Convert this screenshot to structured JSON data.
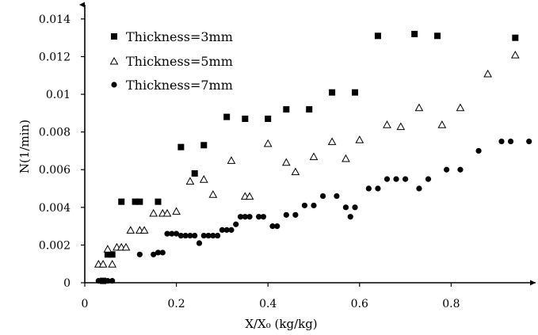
{
  "chart_data": {
    "type": "scatter",
    "title": "",
    "xlabel": "X/X₀ (kg/kg)",
    "ylabel": "N(1/min)",
    "xlim": [
      0,
      1.0
    ],
    "ylim": [
      0,
      0.0145
    ],
    "x_ticks": [
      {
        "value": 0,
        "label": "0"
      },
      {
        "value": 0.2,
        "label": "0.2"
      },
      {
        "value": 0.4,
        "label": "0.4"
      },
      {
        "value": 0.6,
        "label": "0.6"
      },
      {
        "value": 0.8,
        "label": "0.8"
      }
    ],
    "y_ticks": [
      {
        "value": 0,
        "label": "0"
      },
      {
        "value": 0.002,
        "label": "0.002"
      },
      {
        "value": 0.004,
        "label": "0.004"
      },
      {
        "value": 0.006,
        "label": "0.006"
      },
      {
        "value": 0.008,
        "label": "0.008"
      },
      {
        "value": 0.01,
        "label": "0.01"
      },
      {
        "value": 0.012,
        "label": "0.012"
      },
      {
        "value": 0.014,
        "label": "0.014"
      }
    ],
    "grid": false,
    "legend_position": "top-left",
    "series": [
      {
        "name": "Thickness=3mm",
        "marker": "square",
        "color": "#000000",
        "points": [
          [
            0.04,
            0.0001
          ],
          [
            0.05,
            0.0015
          ],
          [
            0.06,
            0.0015
          ],
          [
            0.08,
            0.0043
          ],
          [
            0.11,
            0.0043
          ],
          [
            0.12,
            0.0043
          ],
          [
            0.16,
            0.0043
          ],
          [
            0.21,
            0.0072
          ],
          [
            0.24,
            0.0058
          ],
          [
            0.26,
            0.0073
          ],
          [
            0.31,
            0.0088
          ],
          [
            0.35,
            0.0087
          ],
          [
            0.4,
            0.0087
          ],
          [
            0.44,
            0.0092
          ],
          [
            0.49,
            0.0092
          ],
          [
            0.54,
            0.0101
          ],
          [
            0.59,
            0.0101
          ],
          [
            0.64,
            0.0131
          ],
          [
            0.72,
            0.0132
          ],
          [
            0.77,
            0.0131
          ],
          [
            0.94,
            0.013
          ]
        ]
      },
      {
        "name": "Thickness=5mm",
        "marker": "triangle",
        "color": "#000000",
        "points": [
          [
            0.03,
            0.001
          ],
          [
            0.04,
            0.001
          ],
          [
            0.05,
            0.0018
          ],
          [
            0.06,
            0.001
          ],
          [
            0.07,
            0.0019
          ],
          [
            0.08,
            0.0019
          ],
          [
            0.09,
            0.0019
          ],
          [
            0.1,
            0.0028
          ],
          [
            0.12,
            0.0028
          ],
          [
            0.13,
            0.0028
          ],
          [
            0.15,
            0.0037
          ],
          [
            0.17,
            0.0037
          ],
          [
            0.18,
            0.0037
          ],
          [
            0.2,
            0.0038
          ],
          [
            0.23,
            0.0054
          ],
          [
            0.26,
            0.0055
          ],
          [
            0.28,
            0.0047
          ],
          [
            0.32,
            0.0065
          ],
          [
            0.35,
            0.0046
          ],
          [
            0.36,
            0.0046
          ],
          [
            0.4,
            0.0074
          ],
          [
            0.44,
            0.0064
          ],
          [
            0.46,
            0.0059
          ],
          [
            0.5,
            0.0067
          ],
          [
            0.54,
            0.0075
          ],
          [
            0.57,
            0.0066
          ],
          [
            0.6,
            0.0076
          ],
          [
            0.66,
            0.0084
          ],
          [
            0.69,
            0.0083
          ],
          [
            0.73,
            0.0093
          ],
          [
            0.78,
            0.0084
          ],
          [
            0.82,
            0.0093
          ],
          [
            0.88,
            0.0111
          ],
          [
            0.94,
            0.0121
          ]
        ]
      },
      {
        "name": "Thickness=7mm",
        "marker": "circle",
        "color": "#000000",
        "points": [
          [
            0.03,
            0.0001
          ],
          [
            0.05,
            0.0001
          ],
          [
            0.06,
            0.0001
          ],
          [
            0.12,
            0.0015
          ],
          [
            0.15,
            0.0015
          ],
          [
            0.16,
            0.0016
          ],
          [
            0.17,
            0.0016
          ],
          [
            0.18,
            0.0026
          ],
          [
            0.19,
            0.0026
          ],
          [
            0.2,
            0.0026
          ],
          [
            0.21,
            0.0025
          ],
          [
            0.22,
            0.0025
          ],
          [
            0.23,
            0.0025
          ],
          [
            0.24,
            0.0025
          ],
          [
            0.25,
            0.0021
          ],
          [
            0.26,
            0.0025
          ],
          [
            0.27,
            0.0025
          ],
          [
            0.28,
            0.0025
          ],
          [
            0.29,
            0.0025
          ],
          [
            0.3,
            0.0028
          ],
          [
            0.31,
            0.0028
          ],
          [
            0.32,
            0.0028
          ],
          [
            0.33,
            0.0031
          ],
          [
            0.34,
            0.0035
          ],
          [
            0.35,
            0.0035
          ],
          [
            0.36,
            0.0035
          ],
          [
            0.38,
            0.0035
          ],
          [
            0.39,
            0.0035
          ],
          [
            0.41,
            0.003
          ],
          [
            0.42,
            0.003
          ],
          [
            0.44,
            0.0036
          ],
          [
            0.46,
            0.0036
          ],
          [
            0.48,
            0.0041
          ],
          [
            0.5,
            0.0041
          ],
          [
            0.52,
            0.0046
          ],
          [
            0.55,
            0.0046
          ],
          [
            0.57,
            0.004
          ],
          [
            0.58,
            0.0035
          ],
          [
            0.59,
            0.004
          ],
          [
            0.62,
            0.005
          ],
          [
            0.64,
            0.005
          ],
          [
            0.66,
            0.0055
          ],
          [
            0.68,
            0.0055
          ],
          [
            0.7,
            0.0055
          ],
          [
            0.73,
            0.005
          ],
          [
            0.75,
            0.0055
          ],
          [
            0.79,
            0.006
          ],
          [
            0.82,
            0.006
          ],
          [
            0.86,
            0.007
          ],
          [
            0.91,
            0.0075
          ],
          [
            0.93,
            0.0075
          ],
          [
            0.97,
            0.0075
          ]
        ]
      }
    ]
  }
}
